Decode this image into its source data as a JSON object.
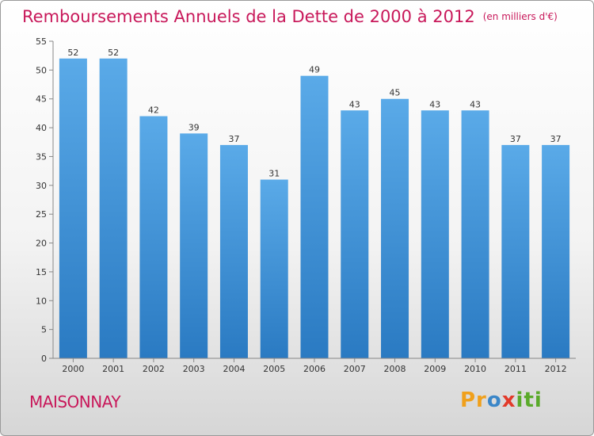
{
  "title": "Remboursements Annuels de la Dette de 2000 à 2012",
  "subtitle": "(en milliers d'€)",
  "town": "MAISONNAY",
  "logo": {
    "p1": "Pr",
    "p2": "o",
    "p3": "x",
    "p4": "iti"
  },
  "colors": {
    "title": "#c8185a",
    "bar_top": "#5aaae8",
    "bar_bottom": "#2a7ac2"
  },
  "chart_data": {
    "type": "bar",
    "title": "Remboursements Annuels de la Dette de 2000 à 2012",
    "subtitle": "(en milliers d'€)",
    "xlabel": "",
    "ylabel": "",
    "categories": [
      "2000",
      "2001",
      "2002",
      "2003",
      "2004",
      "2005",
      "2006",
      "2007",
      "2008",
      "2009",
      "2010",
      "2011",
      "2012"
    ],
    "values": [
      52,
      52,
      42,
      39,
      37,
      31,
      49,
      43,
      45,
      43,
      43,
      37,
      37
    ],
    "ylim": [
      0,
      55
    ],
    "yticks": [
      0,
      5,
      10,
      15,
      20,
      25,
      30,
      35,
      40,
      45,
      50,
      55
    ],
    "grid": false,
    "data_labels": true
  }
}
